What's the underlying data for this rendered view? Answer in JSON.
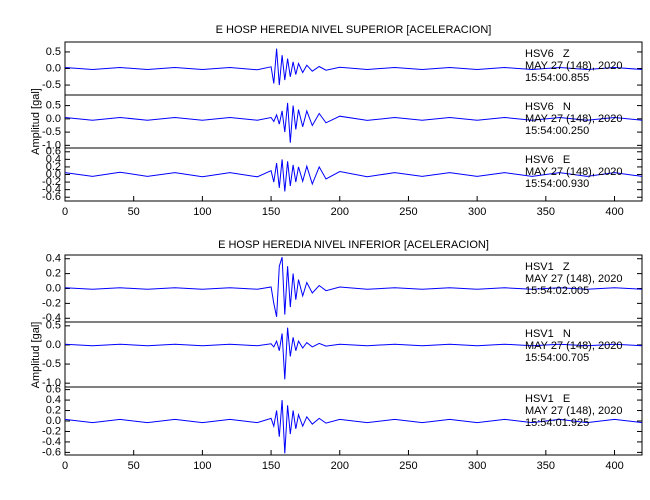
{
  "chart_data": [
    {
      "type": "line",
      "title": "E HOSP HEREDIA NIVEL SUPERIOR [ACELERACION]",
      "ylabel": "Amplitud [gal]",
      "x": [
        0,
        20,
        40,
        60,
        80,
        100,
        120,
        140,
        150,
        152,
        154,
        156,
        158,
        160,
        162,
        164,
        166,
        168,
        170,
        173,
        176,
        180,
        185,
        190,
        200,
        220,
        240,
        260,
        280,
        300,
        320,
        340,
        360,
        380,
        400,
        420
      ],
      "xlim": [
        0,
        420
      ],
      "xticks": [
        0,
        50,
        100,
        150,
        200,
        250,
        300,
        350,
        400
      ],
      "series": [
        {
          "name": "HSV6   Z",
          "date": "MAY 27 (148), 2020",
          "time": "15:54:00.855",
          "color": "#0000ff",
          "ylim": [
            -0.8,
            0.8
          ],
          "yticks": [
            0.5,
            {
              "value": 0,
              "label": "0.0"
            },
            -0.5
          ],
          "values": [
            0.03,
            -0.03,
            0.03,
            -0.03,
            0.03,
            -0.03,
            0.03,
            -0.04,
            0.05,
            -0.45,
            0.6,
            -0.5,
            0.4,
            -0.35,
            0.3,
            -0.25,
            0.2,
            -0.18,
            0.15,
            -0.12,
            0.1,
            -0.08,
            0.06,
            -0.05,
            0.04,
            -0.03,
            0.03,
            -0.03,
            0.03,
            -0.03,
            0.03,
            -0.03,
            0.03,
            -0.03,
            0.03,
            -0.03
          ]
        },
        {
          "name": "HSV6   N",
          "date": "MAY 27 (148), 2020",
          "time": "15:54:00.250",
          "color": "#0000ff",
          "ylim": [
            -1.1,
            0.9
          ],
          "yticks": [
            0.5,
            {
              "value": 0,
              "label": "0.0"
            },
            -0.5,
            {
              "value": -1,
              "label": "-1.0"
            }
          ],
          "values": [
            0.05,
            -0.05,
            0.05,
            -0.05,
            0.05,
            -0.05,
            0.05,
            -0.05,
            0.05,
            -0.1,
            0.15,
            -0.2,
            0.3,
            -0.5,
            0.6,
            -0.9,
            0.5,
            -0.4,
            0.35,
            -0.3,
            0.3,
            -0.25,
            0.2,
            -0.15,
            0.1,
            -0.06,
            0.05,
            -0.05,
            0.05,
            -0.05,
            0.05,
            -0.05,
            0.05,
            -0.05,
            0.05,
            -0.05
          ]
        },
        {
          "name": "HSV6   E",
          "date": "MAY 27 (148), 2020",
          "time": "15:54:00.930",
          "color": "#0000ff",
          "ylim": [
            -0.7,
            0.7
          ],
          "yticks": [
            0.6,
            0.4,
            0.2,
            {
              "value": 0,
              "label": "0.0"
            },
            -0.2,
            -0.4,
            -0.6
          ],
          "values": [
            0.05,
            -0.05,
            0.06,
            -0.05,
            0.05,
            -0.06,
            0.05,
            -0.06,
            0.1,
            -0.2,
            0.3,
            -0.35,
            0.4,
            -0.45,
            0.35,
            -0.3,
            0.25,
            -0.2,
            0.2,
            -0.18,
            0.22,
            -0.25,
            0.2,
            -0.12,
            0.08,
            -0.06,
            0.05,
            -0.05,
            0.05,
            -0.05,
            0.05,
            -0.05,
            0.05,
            -0.05,
            0.05,
            -0.05
          ]
        }
      ]
    },
    {
      "type": "line",
      "title": "E HOSP HEREDIA NIVEL INFERIOR [ACELERACION]",
      "ylabel": "Amplitud [gal]",
      "x": [
        0,
        20,
        40,
        60,
        80,
        100,
        120,
        140,
        150,
        152,
        154,
        156,
        158,
        160,
        162,
        164,
        166,
        168,
        170,
        173,
        176,
        180,
        185,
        190,
        200,
        220,
        240,
        260,
        280,
        300,
        320,
        340,
        360,
        380,
        400,
        420
      ],
      "xlim": [
        0,
        420
      ],
      "xticks": [
        0,
        50,
        100,
        150,
        200,
        250,
        300,
        350,
        400
      ],
      "series": [
        {
          "name": "HSV1   Z",
          "date": "MAY 27 (148), 2020",
          "time": "15:54:02.005",
          "color": "#0000ff",
          "ylim": [
            -0.45,
            0.45
          ],
          "yticks": [
            0.4,
            0.2,
            {
              "value": 0,
              "label": "0.0"
            },
            -0.2,
            -0.4
          ],
          "values": [
            0.01,
            -0.01,
            0.01,
            -0.01,
            0.01,
            -0.01,
            0.01,
            -0.01,
            0.02,
            -0.2,
            -0.38,
            0.3,
            0.42,
            -0.35,
            0.3,
            -0.25,
            0.2,
            -0.15,
            0.12,
            -0.1,
            0.08,
            -0.06,
            0.04,
            -0.03,
            0.02,
            -0.01,
            0.01,
            -0.01,
            0.01,
            -0.01,
            0.01,
            -0.01,
            0.01,
            -0.01,
            0.01,
            -0.01
          ]
        },
        {
          "name": "HSV1   N",
          "date": "MAY 27 (148), 2020",
          "time": "15:54:00.705",
          "color": "#0000ff",
          "ylim": [
            -1.1,
            0.6
          ],
          "yticks": [
            0.5,
            {
              "value": 0,
              "label": "0.0"
            },
            -0.5,
            {
              "value": -1,
              "label": "-1.0"
            }
          ],
          "values": [
            0.02,
            -0.02,
            0.02,
            -0.02,
            0.02,
            -0.02,
            0.02,
            -0.02,
            0.03,
            -0.05,
            0.1,
            -0.15,
            0.3,
            -0.9,
            0.45,
            -0.3,
            0.2,
            -0.15,
            0.1,
            -0.08,
            0.06,
            -0.05,
            0.04,
            -0.03,
            0.02,
            -0.02,
            0.02,
            -0.02,
            0.02,
            -0.02,
            0.02,
            -0.02,
            0.02,
            -0.02,
            0.02,
            -0.02
          ]
        },
        {
          "name": "HSV1   E",
          "date": "MAY 27 (148), 2020",
          "time": "15:54:01.925",
          "color": "#0000ff",
          "ylim": [
            -0.65,
            0.65
          ],
          "yticks": [
            0.6,
            0.4,
            0.2,
            {
              "value": 0,
              "label": "0.0"
            },
            -0.2,
            -0.4,
            -0.6
          ],
          "values": [
            0.03,
            -0.03,
            0.03,
            -0.03,
            0.03,
            -0.03,
            0.03,
            -0.03,
            0.05,
            -0.1,
            0.2,
            -0.3,
            0.4,
            -0.62,
            0.3,
            -0.25,
            0.2,
            -0.15,
            0.12,
            -0.1,
            0.08,
            -0.06,
            0.05,
            -0.04,
            0.03,
            -0.03,
            0.03,
            -0.03,
            0.03,
            -0.03,
            0.03,
            -0.03,
            0.03,
            -0.03,
            0.03,
            -0.03
          ]
        }
      ]
    }
  ]
}
